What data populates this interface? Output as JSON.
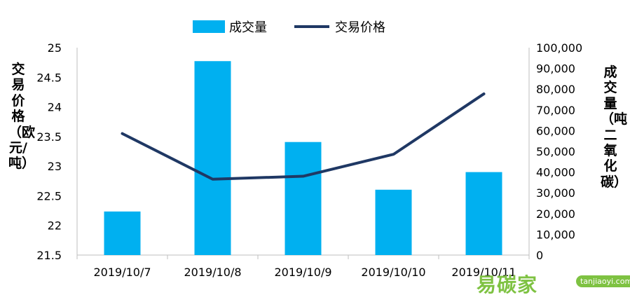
{
  "chart_data": {
    "type": "bar+line",
    "categories": [
      "2019/10/7",
      "2019/10/8",
      "2019/10/9",
      "2019/10/10",
      "2019/10/11"
    ],
    "series": [
      {
        "name": "成交量",
        "type": "bar",
        "axis": "right",
        "color": "#00b0f0",
        "values": [
          21000,
          93500,
          54500,
          31500,
          40000
        ]
      },
      {
        "name": "交易价格",
        "type": "line",
        "axis": "left",
        "color": "#1f3864",
        "values": [
          23.55,
          22.78,
          22.83,
          23.2,
          24.22
        ]
      }
    ],
    "y_left": {
      "label": "交易价格（欧元/吨）",
      "ylim": [
        21.5,
        25
      ],
      "ticks": [
        "21.5",
        "22",
        "22.5",
        "23",
        "23.5",
        "24",
        "24.5",
        "25"
      ]
    },
    "y_right": {
      "label": "成交量（吨二氧化碳）",
      "ylim": [
        0,
        100000
      ],
      "ticks": [
        "0",
        "10,000",
        "20,000",
        "30,000",
        "40,000",
        "50,000",
        "60,000",
        "70,000",
        "80,000",
        "90,000",
        "100,000"
      ]
    },
    "grid": false,
    "legend": "top-center"
  },
  "watermark": {
    "brand": "易碳家",
    "url": "tanjiaoyi.com"
  }
}
